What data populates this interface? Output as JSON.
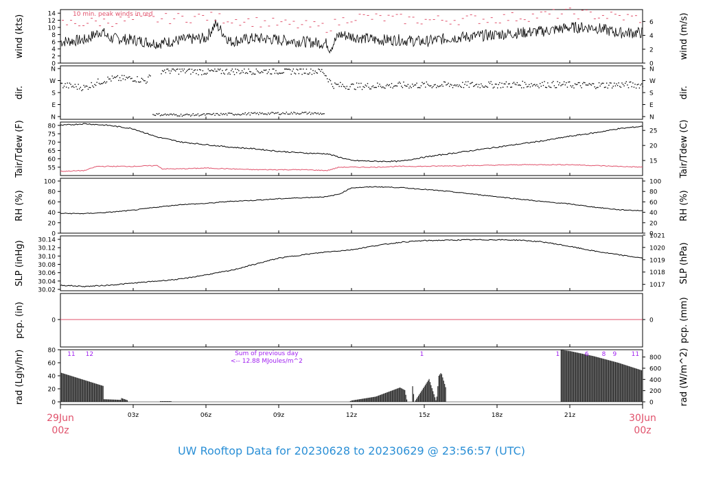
{
  "footer_title": "UW Rooftop Data for 20230628  to  20230629 @ 23:56:57  (UTC)",
  "colors": {
    "accent_red": "#e0506a",
    "accent_purple": "#a020f0",
    "footer_blue": "#2a8fd6",
    "ink": "#000000"
  },
  "x_axis": {
    "ticks": [
      "03z",
      "06z",
      "09z",
      "12z",
      "15z",
      "18z",
      "21z"
    ],
    "tick_hours": [
      3,
      6,
      9,
      12,
      15,
      18,
      21
    ],
    "start": {
      "line1": "29Jun",
      "line2": "00z"
    },
    "end": {
      "line1": "30Jun",
      "line2": "00z"
    },
    "range_hours": [
      0,
      24
    ]
  },
  "chart_data": [
    {
      "type": "line",
      "panel": "wind",
      "ylabel_left": "wind (kts)",
      "ylabel_right": "wind (m/s)",
      "annotation": "10 min. peak winds in red",
      "ylim": [
        0,
        15
      ],
      "yticks_left": [
        "0",
        "2",
        "4",
        "6",
        "8",
        "10",
        "12",
        "14"
      ],
      "yticks_right": [
        "0",
        "2",
        "4",
        "6"
      ],
      "series": [
        {
          "x": [
            0,
            1,
            1.7,
            2,
            3,
            4,
            5,
            6,
            6.4,
            7,
            8,
            9,
            10,
            11,
            11.1,
            11.5,
            12,
            13,
            14,
            15,
            16,
            17,
            18,
            19,
            20,
            21,
            22,
            23,
            24
          ],
          "y": [
            6,
            6.5,
            9,
            7,
            6.5,
            5.5,
            6.5,
            7,
            11,
            6,
            7,
            6.5,
            6,
            5.5,
            4,
            8,
            7.5,
            6.5,
            6.5,
            6,
            7,
            7.5,
            8,
            8.5,
            9,
            10,
            10,
            8.5,
            8.5
          ]
        },
        {
          "x": [
            0,
            3,
            6,
            9,
            11,
            12,
            15,
            18,
            21,
            24
          ],
          "y": [
            11,
            12,
            13,
            11,
            10,
            13,
            12,
            12.5,
            14,
            12.5
          ]
        }
      ]
    },
    {
      "type": "scatter",
      "panel": "dir",
      "ylabel_left": "dir.",
      "ylabel_right": "dir.",
      "yticks": [
        "N",
        "E",
        "S",
        "W",
        "N"
      ],
      "series": [
        {
          "x": [
            0,
            1,
            1.5,
            2,
            3,
            3.5,
            4,
            5,
            6,
            8,
            10,
            10.8,
            11.2,
            12,
            14,
            16,
            18,
            20,
            21,
            22,
            23,
            24
          ],
          "y": [
            240,
            220,
            260,
            285,
            290,
            270,
            350,
            345,
            340,
            345,
            345,
            345,
            240,
            230,
            238,
            240,
            242,
            245,
            240,
            238,
            242,
            240
          ]
        },
        {
          "x": [
            3.8,
            5,
            6,
            7,
            8,
            9,
            10,
            10.9
          ],
          "y": [
            20,
            15,
            18,
            22,
            25,
            28,
            30,
            25
          ]
        }
      ]
    },
    {
      "type": "line",
      "panel": "temp",
      "ylabel_left": "Tair/Tdew (F)",
      "ylabel_right": "Tair/Tdew (C)",
      "ylim": [
        50,
        82
      ],
      "yticks_left": [
        "55",
        "60",
        "65",
        "70",
        "75",
        "80"
      ],
      "yticks_right": [
        "15",
        "20",
        "25"
      ],
      "series": [
        {
          "x": [
            0,
            1,
            2,
            3,
            4,
            5,
            6,
            7,
            8,
            9,
            10,
            11,
            12,
            13,
            14,
            15,
            16,
            17,
            18,
            19,
            20,
            21,
            22,
            23,
            24
          ],
          "y": [
            80,
            81,
            80,
            78,
            73,
            70,
            68.5,
            67,
            66,
            64.5,
            63.5,
            63,
            59,
            58.5,
            58.5,
            61,
            63,
            65,
            67,
            69,
            71,
            73.5,
            75.5,
            78,
            79.5
          ]
        },
        {
          "x": [
            0,
            1,
            1.5,
            2,
            3,
            4,
            4.2,
            5,
            6,
            7,
            8,
            9,
            10,
            11,
            11.5,
            12,
            13,
            14,
            15,
            16,
            17,
            18,
            19,
            20,
            21,
            22,
            23,
            24
          ],
          "y": [
            52.5,
            53,
            55.5,
            55.5,
            55.5,
            56,
            54,
            54,
            54.5,
            54,
            53.5,
            53.5,
            53.5,
            53,
            55,
            55,
            55,
            55.5,
            55.5,
            55.8,
            56,
            56.2,
            56.5,
            56.5,
            56.5,
            56,
            55.5,
            55
          ]
        }
      ]
    },
    {
      "type": "line",
      "panel": "rh",
      "ylabel_left": "RH (%)",
      "ylabel_right": "RH (%)",
      "ylim": [
        0,
        100
      ],
      "yticks_left": [
        "0",
        "20",
        "40",
        "60",
        "80",
        "100"
      ],
      "yticks_right": [
        "0",
        "20",
        "40",
        "60",
        "80",
        "100"
      ],
      "series": [
        {
          "x": [
            0,
            1,
            2,
            3,
            4,
            5,
            6,
            7,
            8,
            9,
            10,
            11,
            11.5,
            12,
            13,
            14,
            15,
            16,
            17,
            18,
            19,
            20,
            21,
            22,
            23,
            24
          ],
          "y": [
            38,
            37.5,
            40,
            44,
            50,
            55,
            57,
            61,
            63,
            66,
            68,
            70,
            75,
            87,
            89,
            87.5,
            84,
            80,
            75,
            70,
            65,
            60,
            56,
            50,
            45,
            43
          ]
        }
      ]
    },
    {
      "type": "line",
      "panel": "slp",
      "ylabel_left": "SLP (inHg)",
      "ylabel_right": "SLP (hPa)",
      "ylim": [
        30.02,
        30.145
      ],
      "yticks_left": [
        "30.02",
        "30.04",
        "30.06",
        "30.08",
        "30.10",
        "30.12",
        "30.14"
      ],
      "yticks_right": [
        "1017",
        "1018",
        "1019",
        "1020",
        "1021"
      ],
      "series": [
        {
          "x": [
            0,
            1,
            2,
            3,
            4,
            5,
            6,
            7,
            8,
            9,
            10,
            11,
            12,
            13,
            14,
            15,
            16,
            17,
            18,
            19,
            20,
            21,
            22,
            23,
            24
          ],
          "y": [
            30.03,
            30.027,
            30.03,
            30.035,
            30.04,
            30.045,
            30.055,
            30.065,
            30.08,
            30.095,
            30.103,
            30.11,
            30.115,
            30.125,
            30.133,
            30.137,
            30.138,
            30.139,
            30.139,
            30.138,
            30.133,
            30.123,
            30.112,
            30.103,
            30.095
          ]
        }
      ]
    },
    {
      "type": "line",
      "panel": "pcp",
      "ylabel_left": "pcp. (in)",
      "ylabel_right": "pcp. (mm)",
      "yticks_left": [
        "0"
      ],
      "yticks_right": [
        "0"
      ],
      "series": [
        {
          "x": [
            0,
            24
          ],
          "y": [
            0,
            0
          ]
        }
      ]
    },
    {
      "type": "area",
      "panel": "rad",
      "ylabel_left": "rad (Lgly/hr)",
      "ylabel_right": "rad (W/m^2)",
      "ylim": [
        0,
        80
      ],
      "yticks_left": [
        "0",
        "20",
        "40",
        "60",
        "80"
      ],
      "yticks_right": [
        "0",
        "200",
        "400",
        "600",
        "800"
      ],
      "annotation_line1": "Sum of previous day",
      "annotation_line2": "<-- 12.88 MJoules/m^2",
      "top_labels": [
        {
          "x": 0.45,
          "text": "11"
        },
        {
          "x": 1.2,
          "text": "12"
        },
        {
          "x": 14.9,
          "text": "1"
        },
        {
          "x": 20.5,
          "text": "1"
        },
        {
          "x": 21.7,
          "text": "6"
        },
        {
          "x": 22.4,
          "text": "8"
        },
        {
          "x": 22.85,
          "text": "9"
        },
        {
          "x": 23.7,
          "text": "11"
        }
      ],
      "series": [
        {
          "x": [
            0,
            1.8,
            1.8,
            2.5,
            2.5,
            2.8,
            2.8,
            4.1,
            4.1,
            4.6,
            4.6,
            11.9,
            12,
            13,
            13.5,
            14,
            14.2,
            14.3,
            14.5,
            14.5,
            14.6,
            14.6,
            15.2,
            15.5,
            15.6,
            15.7,
            15.9,
            15.9,
            20.6,
            20.6,
            21,
            22,
            23,
            24
          ],
          "y": [
            45,
            24,
            4,
            3,
            6,
            2,
            0,
            0,
            1,
            1,
            0,
            0,
            2,
            8,
            15,
            22,
            18,
            0,
            0,
            30,
            0,
            0,
            35,
            0,
            40,
            45,
            20,
            0,
            0,
            80,
            78,
            70,
            60,
            48
          ]
        }
      ]
    }
  ]
}
